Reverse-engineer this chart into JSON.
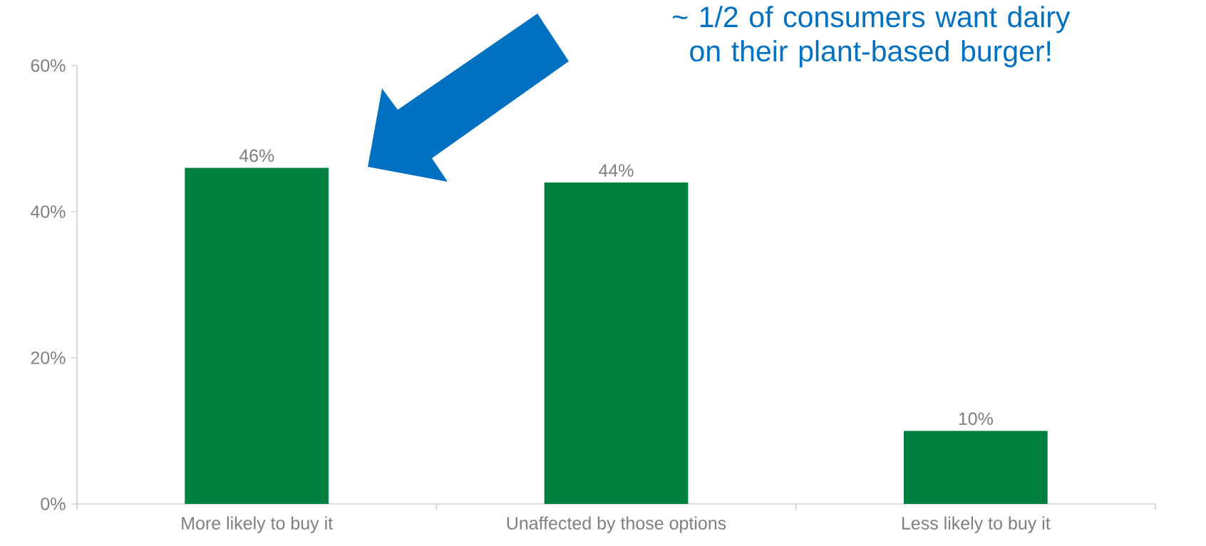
{
  "chart_data": {
    "type": "bar",
    "categories": [
      "More likely to buy it",
      "Unaffected by those options",
      "Less likely to buy it"
    ],
    "values": [
      46,
      44,
      10
    ],
    "value_labels": [
      "46%",
      "44%",
      "10%"
    ],
    "color": "#008040",
    "ylim": [
      0,
      60
    ],
    "yticks": [
      {
        "value": 0,
        "label": "0%"
      },
      {
        "value": 20,
        "label": "20%"
      },
      {
        "value": 40,
        "label": "40%"
      },
      {
        "value": 60,
        "label": "60%"
      }
    ],
    "grid": false,
    "annotations": [
      "~ 1/2 of consumers want dairy on their plant-based burger!"
    ]
  }
}
